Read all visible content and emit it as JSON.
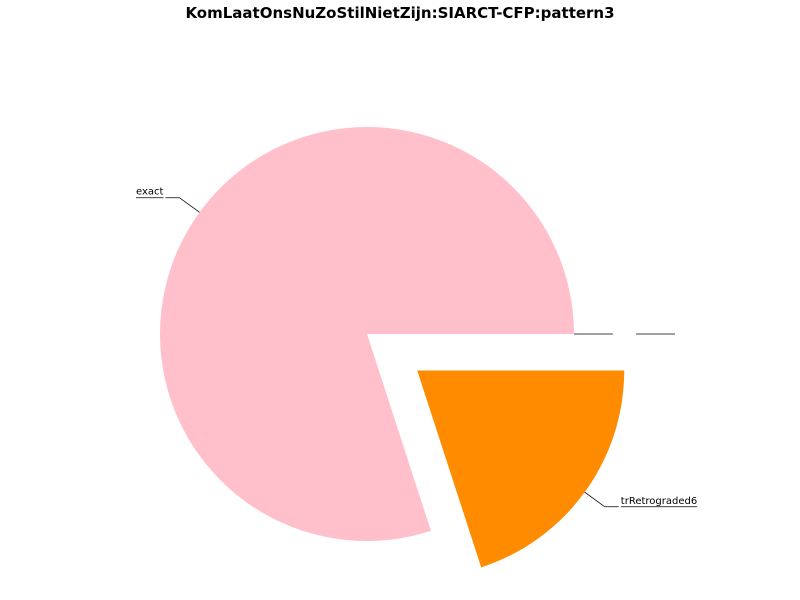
{
  "chart_data": {
    "type": "pie",
    "title": "KomLaatOnsNuZoStilNietZijn:SIARCT-CFP:pattern3",
    "slices": [
      {
        "label": "exact",
        "value": 80,
        "color": "#ffc0cb",
        "exploded": false
      },
      {
        "label": "trRetrograded6",
        "value": 20,
        "color": "#ff8c00",
        "exploded": true
      },
      {
        "label": "",
        "value": 0,
        "color": "#1f77b4",
        "exploded": false
      },
      {
        "label": "",
        "value": 0,
        "color": "#2ca02c",
        "exploded": true
      }
    ],
    "start_angle_deg": 0,
    "direction": "counterclockwise",
    "legend": "none"
  }
}
